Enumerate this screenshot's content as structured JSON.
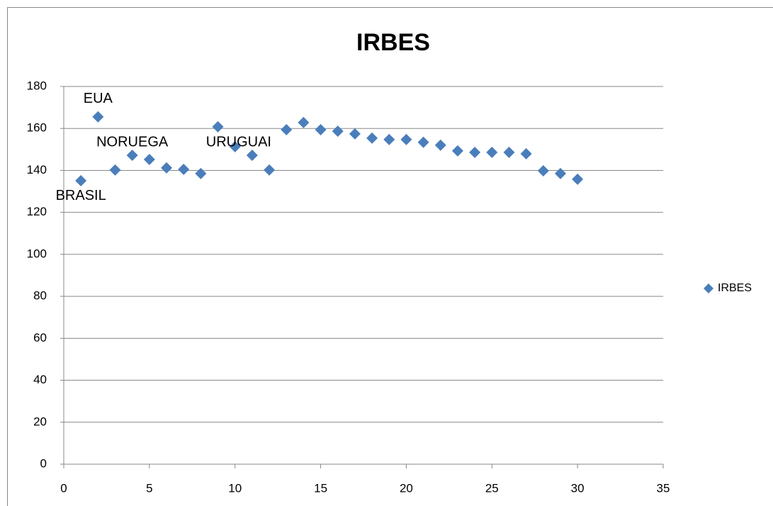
{
  "chart_data": {
    "type": "scatter",
    "title": "IRBES",
    "x": [
      1,
      2,
      3,
      4,
      5,
      6,
      7,
      8,
      9,
      10,
      11,
      12,
      13,
      14,
      15,
      16,
      17,
      18,
      19,
      20,
      21,
      22,
      23,
      24,
      25,
      26,
      27,
      28,
      29,
      30
    ],
    "series": [
      {
        "name": "IRBES",
        "color": "#4a7ebb",
        "values": [
          135.1,
          165.5,
          140.2,
          147.2,
          145.2,
          141.2,
          140.5,
          138.5,
          160.8,
          151.3,
          147.2,
          140.2,
          159.4,
          162.8,
          159.4,
          158.7,
          157.4,
          155.4,
          154.7,
          154.7,
          153.4,
          152,
          149.3,
          148.6,
          148.6,
          148.6,
          147.9,
          139.8,
          138.5,
          135.8
        ],
        "point_labels": [
          "BRASIL",
          "EUA",
          null,
          "NORUEGA",
          null,
          null,
          null,
          null,
          null,
          null,
          "URUGUAI",
          null,
          null,
          null,
          null,
          null,
          null,
          null,
          null,
          null,
          null,
          null,
          null,
          null,
          null,
          null,
          null,
          null,
          null,
          null
        ]
      }
    ],
    "xlim": [
      0,
      35
    ],
    "xticks": [
      0,
      5,
      10,
      15,
      20,
      25,
      30,
      35
    ],
    "ylim": [
      0,
      180
    ],
    "yticks": [
      0,
      20,
      40,
      60,
      80,
      100,
      120,
      140,
      160,
      180
    ],
    "grid": true,
    "legend": "right"
  }
}
